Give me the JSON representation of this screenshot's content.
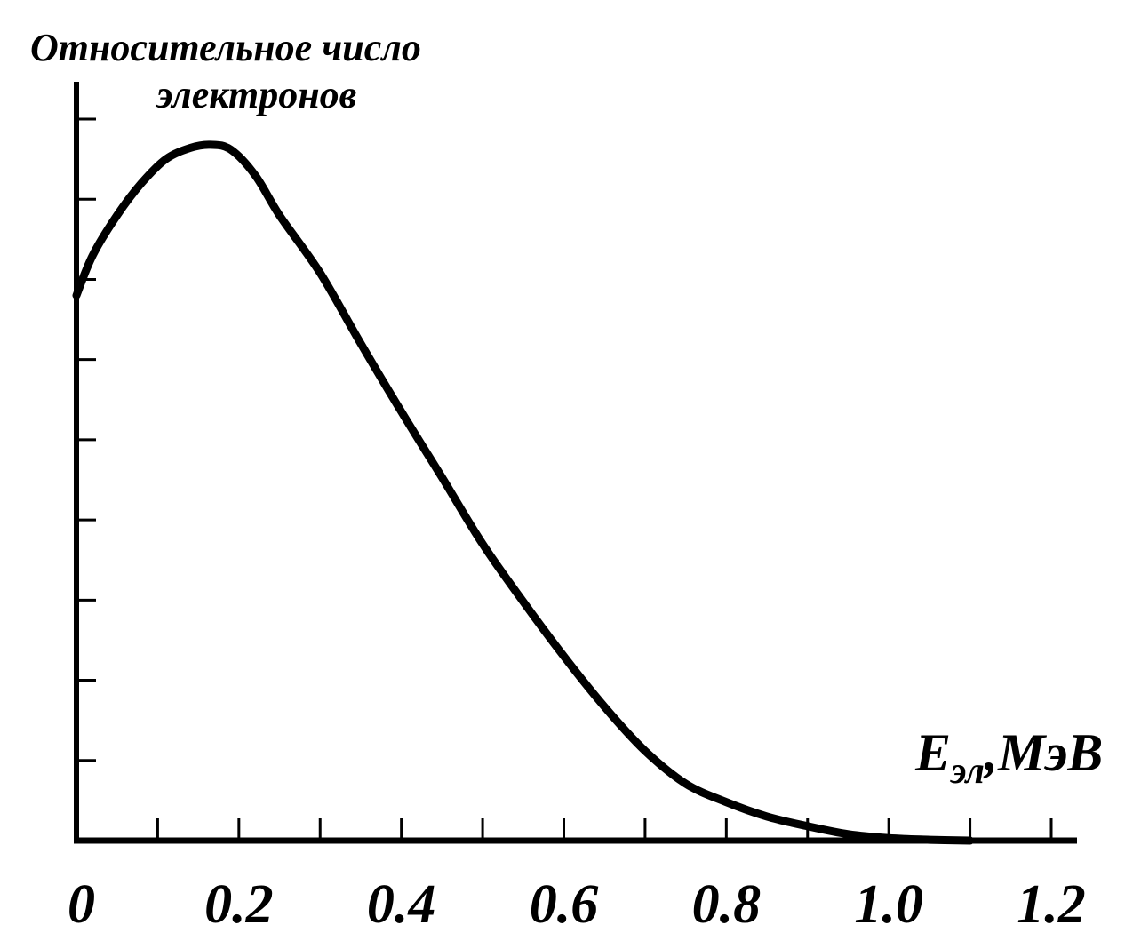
{
  "chart_data": {
    "type": "line",
    "ylabel_lines": [
      "Относительное число",
      "электронов"
    ],
    "xlabel": {
      "main": "E",
      "sub": "эл",
      "unit": ",МэВ"
    },
    "xlim": [
      0,
      1.2
    ],
    "ylim": [
      0,
      9
    ],
    "x_ticks": [
      0,
      0.1,
      0.2,
      0.3,
      0.4,
      0.5,
      0.6,
      0.7,
      0.8,
      0.9,
      1.0,
      1.1,
      1.2
    ],
    "x_tick_labels": [
      {
        "x": 0,
        "text": "0"
      },
      {
        "x": 0.2,
        "text": "0.2"
      },
      {
        "x": 0.4,
        "text": "0.4"
      },
      {
        "x": 0.6,
        "text": "0.6"
      },
      {
        "x": 0.8,
        "text": "0.8"
      },
      {
        "x": 1.0,
        "text": "1.0"
      },
      {
        "x": 1.2,
        "text": "1.2"
      }
    ],
    "y_ticks": [
      1,
      2,
      3,
      4,
      5,
      6,
      7,
      8,
      9
    ],
    "grid": false,
    "series": [
      {
        "color": "#000000",
        "points": [
          [
            0.0,
            6.8
          ],
          [
            0.02,
            7.3
          ],
          [
            0.05,
            7.8
          ],
          [
            0.08,
            8.2
          ],
          [
            0.11,
            8.5
          ],
          [
            0.14,
            8.64
          ],
          [
            0.165,
            8.68
          ],
          [
            0.19,
            8.62
          ],
          [
            0.22,
            8.3
          ],
          [
            0.25,
            7.8
          ],
          [
            0.3,
            7.08
          ],
          [
            0.35,
            6.2
          ],
          [
            0.4,
            5.35
          ],
          [
            0.45,
            4.53
          ],
          [
            0.5,
            3.7
          ],
          [
            0.55,
            2.98
          ],
          [
            0.6,
            2.3
          ],
          [
            0.65,
            1.67
          ],
          [
            0.7,
            1.12
          ],
          [
            0.75,
            0.71
          ],
          [
            0.8,
            0.48
          ],
          [
            0.85,
            0.3
          ],
          [
            0.9,
            0.18
          ],
          [
            0.95,
            0.08
          ],
          [
            1.0,
            0.03
          ],
          [
            1.05,
            0.01
          ],
          [
            1.1,
            0.0
          ]
        ]
      }
    ]
  }
}
